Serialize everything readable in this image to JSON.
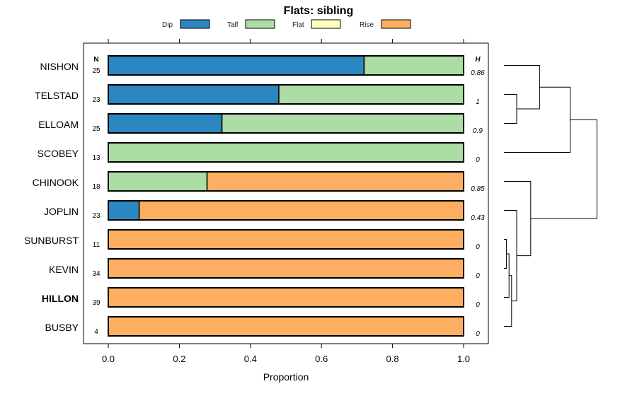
{
  "chart_data": {
    "type": "bar",
    "stacked": true,
    "orientation": "horizontal",
    "title": "Flats: sibling",
    "xlabel": "Proportion",
    "xlim": [
      0,
      1
    ],
    "x_ticks": [
      "0.0",
      "0.2",
      "0.4",
      "0.6",
      "0.8",
      "1.0"
    ],
    "n_header": "N",
    "h_header": "H",
    "legend": [
      {
        "name": "Dip",
        "color": "#2c86bf"
      },
      {
        "name": "Talf",
        "color": "#abdda4"
      },
      {
        "name": "Flat",
        "color": "#ffffbf"
      },
      {
        "name": "Rise",
        "color": "#fdae61"
      }
    ],
    "categories": [
      "NISHON",
      "TELSTAD",
      "ELLOAM",
      "SCOBEY",
      "CHINOOK",
      "JOPLIN",
      "SUNBURST",
      "KEVIN",
      "HILLON",
      "BUSBY"
    ],
    "highlight": "HILLON",
    "n": [
      "25",
      "23",
      "25",
      "13",
      "18",
      "23",
      "11",
      "34",
      "39",
      "4"
    ],
    "h": [
      "0.86",
      "1",
      "0.9",
      "0",
      "0.85",
      "0.43",
      "0",
      "0",
      "0",
      "0"
    ],
    "series": [
      {
        "name": "Dip",
        "values": [
          0.72,
          0.48,
          0.32,
          0,
          0,
          0.087,
          0,
          0,
          0,
          0
        ]
      },
      {
        "name": "Talf",
        "values": [
          0.28,
          0.52,
          0.68,
          1,
          0.278,
          0,
          0,
          0,
          0,
          0
        ]
      },
      {
        "name": "Flat",
        "values": [
          0,
          0,
          0,
          0,
          0,
          0,
          0,
          0,
          0,
          0
        ]
      },
      {
        "name": "Rise",
        "values": [
          0,
          0,
          0,
          0,
          0.722,
          0.913,
          1,
          1,
          1,
          1
        ]
      }
    ],
    "dendrogram": {
      "description": "hierarchical clustering of categories",
      "merges": [
        {
          "id": "A",
          "left": "TELSTAD",
          "right": "ELLOAM",
          "height": 0.1
        },
        {
          "id": "B",
          "left": "NISHON",
          "right": "A",
          "height": 0.28
        },
        {
          "id": "C",
          "left": "B",
          "right": "SCOBEY",
          "height": 0.52
        },
        {
          "id": "D",
          "left": "SUNBURST",
          "right": "KEVIN",
          "height": 0.02
        },
        {
          "id": "E",
          "left": "D",
          "right": "HILLON",
          "height": 0.04
        },
        {
          "id": "F",
          "left": "E",
          "right": "BUSBY",
          "height": 0.06
        },
        {
          "id": "G",
          "left": "JOPLIN",
          "right": "F",
          "height": 0.1
        },
        {
          "id": "H",
          "left": "CHINOOK",
          "right": "G",
          "height": 0.21
        },
        {
          "id": "I",
          "left": "C",
          "right": "H",
          "height": 0.73
        }
      ]
    }
  }
}
